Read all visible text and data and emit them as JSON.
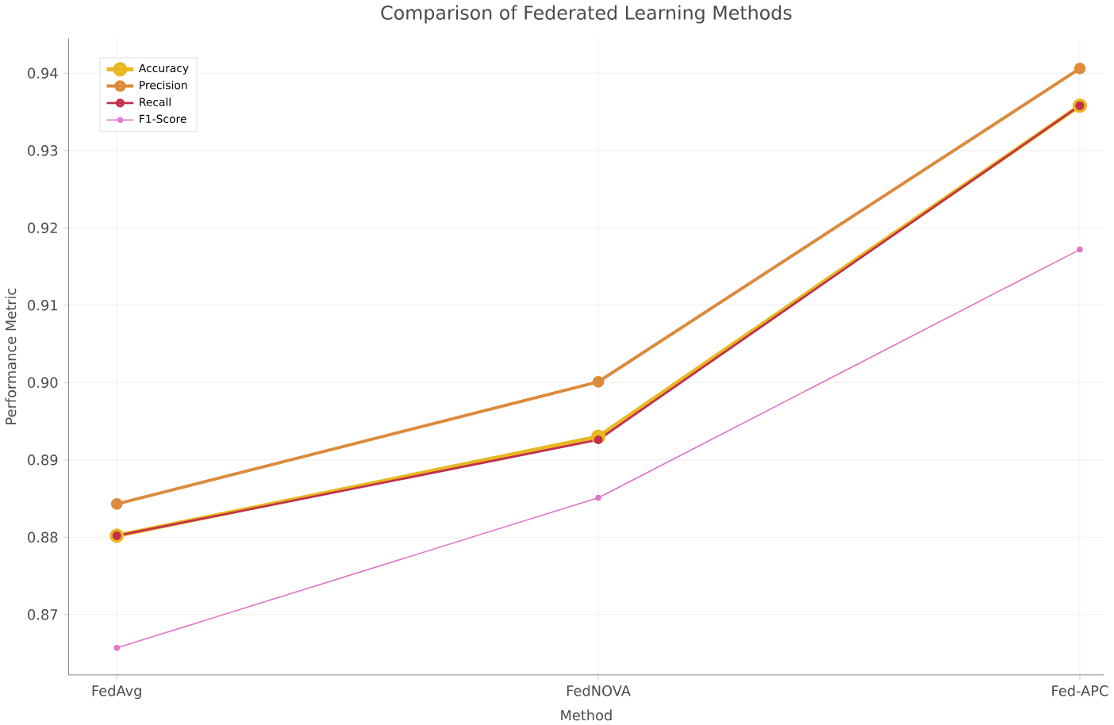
{
  "chart_data": {
    "type": "line",
    "title": "Comparison of Federated Learning Methods",
    "xlabel": "Method",
    "ylabel": "Performance Metric",
    "categories": [
      "FedAvg",
      "FedNOVA",
      "Fed-APC"
    ],
    "series": [
      {
        "name": "Accuracy",
        "color": "#e8b820",
        "values": [
          0.8802,
          0.893,
          0.9358
        ]
      },
      {
        "name": "Precision",
        "color": "#dd8a3c",
        "values": [
          0.8843,
          0.9001,
          0.9406
        ]
      },
      {
        "name": "Recall",
        "color": "#c2304c",
        "values": [
          0.8802,
          0.8926,
          0.9358
        ]
      },
      {
        "name": "F1-Score",
        "color": "#e274c8",
        "values": [
          0.8657,
          0.8851,
          0.9172
        ]
      }
    ],
    "ylim": [
      0.8622,
      0.9445
    ],
    "yticks": [
      {
        "value": 0.87,
        "label": "0.87"
      },
      {
        "value": 0.88,
        "label": "0.88"
      },
      {
        "value": 0.89,
        "label": "0.89"
      },
      {
        "value": 0.9,
        "label": "0.90"
      },
      {
        "value": 0.91,
        "label": "0.91"
      },
      {
        "value": 0.92,
        "label": "0.92"
      },
      {
        "value": 0.93,
        "label": "0.93"
      },
      {
        "value": 0.94,
        "label": "0.94"
      }
    ],
    "grid": true,
    "legend": "top left",
    "marker": "circle",
    "line_style": "solid"
  }
}
